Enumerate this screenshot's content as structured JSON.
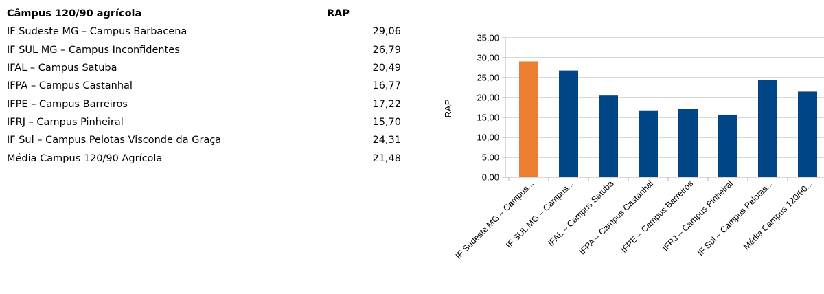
{
  "table": {
    "header_name": "Câmpus 120/90 agrícola",
    "header_value": "RAP",
    "rows": [
      {
        "name": "IF Sudeste MG – Campus Barbacena",
        "value": "29,06"
      },
      {
        "name": "IF SUL MG – Campus Inconfidentes",
        "value": "26,79"
      },
      {
        "name": "IFAL – Campus Satuba",
        "value": "20,49"
      },
      {
        "name": "IFPA – Campus Castanhal",
        "value": "16,77"
      },
      {
        "name": "IFPE – Campus Barreiros",
        "value": "17,22"
      },
      {
        "name": "IFRJ – Campus Pinheiral",
        "value": "15,70"
      },
      {
        "name": "IF Sul – Campus Pelotas Visconde da Graça",
        "value": "24,31"
      },
      {
        "name": "Média Campus 120/90 Agrícola",
        "value": "21,48"
      }
    ]
  },
  "chart_data": {
    "type": "bar",
    "ylabel": "RAP",
    "ylim": [
      0,
      35
    ],
    "ytick_step": 5,
    "yticks": [
      "0,00",
      "5,00",
      "10,00",
      "15,00",
      "20,00",
      "25,00",
      "30,00",
      "35,00"
    ],
    "grid": true,
    "legend": "none",
    "categories": [
      "IF Sudeste MG – Campus...",
      "IF SUL MG – Campus...",
      "IFAL – Campus Satuba",
      "IFPA – Campus Castanhal",
      "IFPE – Campus Barreiros",
      "IFRJ – Campus Pinheiral",
      "IF Sul – Campus Pelotas...",
      "Média Campus 120/90..."
    ],
    "values": [
      29.06,
      26.79,
      20.49,
      16.77,
      17.22,
      15.7,
      24.31,
      21.48
    ],
    "bar_colors": [
      "#ED7D31",
      "#004586",
      "#004586",
      "#004586",
      "#004586",
      "#004586",
      "#004586",
      "#004586"
    ]
  }
}
